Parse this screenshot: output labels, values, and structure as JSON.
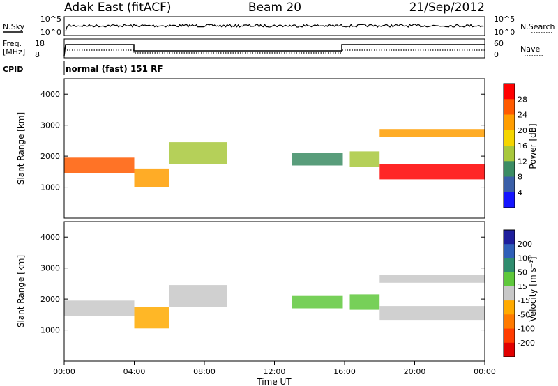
{
  "header": {
    "title": "Adak East (fitACF)",
    "beam": "Beam 20",
    "date": "21/Sep/2012"
  },
  "panels": {
    "noise": {
      "left_label": "N.Sky",
      "left_ticks": [
        "10^5",
        "10^0"
      ],
      "right_ticks": [
        "10^5",
        "10^0"
      ],
      "right_label": "N.Search"
    },
    "freq": {
      "left_label": "Freq.",
      "left_unit": "[MHz]",
      "left_ticks": [
        "18",
        "8"
      ],
      "right_ticks": [
        "60",
        "0"
      ],
      "right_label": "Nave"
    },
    "cpid": {
      "label": "CPID",
      "value": "normal (fast) 151 RF"
    }
  },
  "power_colorbar": {
    "label": "Power [dB]",
    "ticks": [
      "28",
      "24",
      "20",
      "16",
      "12",
      "8",
      "4"
    ],
    "colors": [
      "#ff0000",
      "#ff5a00",
      "#ff9d00",
      "#f5d500",
      "#a8c83c",
      "#3c8c64",
      "#3a5fa8",
      "#1414ff"
    ]
  },
  "velocity_colorbar": {
    "label": "Velocity [m s⁻¹]",
    "ticks": [
      "200",
      "100",
      "50",
      "15",
      "-15",
      "-50",
      "-100",
      "-200"
    ],
    "colors": [
      "#1e1e9c",
      "#2f5fb8",
      "#2f8c6e",
      "#5fc83c",
      "#c8c8c8",
      "#ffaa00",
      "#ff7a00",
      "#ff3c00",
      "#e10000"
    ]
  },
  "x_axis": {
    "label": "Time UT",
    "ticks": [
      "00:00",
      "04:00",
      "08:00",
      "12:00",
      "16:00",
      "20:00",
      "00:00"
    ]
  },
  "chart_data": [
    {
      "type": "heatmap",
      "title": "",
      "xlabel": "Time UT",
      "ylabel": "Slant Range [km]",
      "x_range_hours": [
        0,
        24
      ],
      "ylim": [
        0,
        4500
      ],
      "yticks": [
        "1000",
        "2000",
        "3000",
        "4000"
      ],
      "value_label": "Power [dB]",
      "value_range": [
        0,
        30
      ],
      "echo_bands": [
        {
          "t_start": 0,
          "t_end": 4,
          "range_center": 1700,
          "range_width": 500,
          "value": 24
        },
        {
          "t_start": 4,
          "t_end": 6,
          "range_center": 1300,
          "range_width": 600,
          "value": 22
        },
        {
          "t_start": 6,
          "t_end": 9.3,
          "range_center": 2100,
          "range_width": 700,
          "value": 14
        },
        {
          "t_start": 13,
          "t_end": 15.9,
          "range_center": 1900,
          "range_width": 400,
          "value": 8
        },
        {
          "t_start": 16.3,
          "t_end": 18,
          "range_center": 1900,
          "range_width": 500,
          "value": 12
        },
        {
          "t_start": 18,
          "t_end": 24,
          "range_center": 1500,
          "range_width": 500,
          "value": 28
        },
        {
          "t_start": 18,
          "t_end": 24,
          "range_center": 2750,
          "range_width": 250,
          "value": 22
        }
      ]
    },
    {
      "type": "heatmap",
      "title": "",
      "xlabel": "Time UT",
      "ylabel": "Slant Range [km]",
      "x_range_hours": [
        0,
        24
      ],
      "ylim": [
        0,
        4500
      ],
      "yticks": [
        "1000",
        "2000",
        "3000",
        "4000"
      ],
      "value_label": "Velocity [m s⁻¹]",
      "value_range": [
        -200,
        200
      ],
      "echo_bands": [
        {
          "t_start": 0,
          "t_end": 4,
          "range_center": 1700,
          "range_width": 500,
          "value": 0
        },
        {
          "t_start": 4,
          "t_end": 6,
          "range_center": 1400,
          "range_width": 700,
          "value": -50
        },
        {
          "t_start": 6,
          "t_end": 9.3,
          "range_center": 2100,
          "range_width": 700,
          "value": 0
        },
        {
          "t_start": 13,
          "t_end": 15.9,
          "range_center": 1900,
          "range_width": 400,
          "value": 50
        },
        {
          "t_start": 16.3,
          "t_end": 18,
          "range_center": 1900,
          "range_width": 500,
          "value": 50
        },
        {
          "t_start": 18,
          "t_end": 24,
          "range_center": 1550,
          "range_width": 450,
          "value": 0
        },
        {
          "t_start": 18,
          "t_end": 24,
          "range_center": 2650,
          "range_width": 250,
          "value": 0
        }
      ]
    }
  ]
}
